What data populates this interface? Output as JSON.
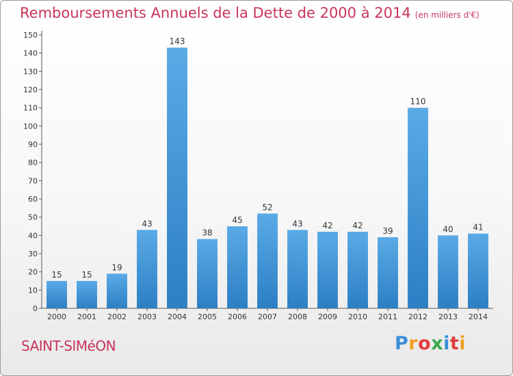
{
  "header": {
    "title": "Remboursements Annuels de la Dette de 2000 à 2014",
    "unit": "(en milliers d'€)"
  },
  "footer": {
    "city": "SAINT-SIMéON",
    "logo": [
      "P",
      "r",
      "o",
      "x",
      "i",
      "t",
      "i"
    ],
    "logo_colors": [
      "#3a8fd6",
      "#f0a020",
      "#e23b3b",
      "#3aa84a",
      "#3a8fd6",
      "#e23b3b",
      "#f0a020"
    ]
  },
  "colors": {
    "bar_light": "#5aaae6",
    "bar_dark": "#2c7fc4",
    "title": "#c8345a"
  },
  "chart_data": {
    "type": "bar",
    "title": "Remboursements Annuels de la Dette de 2000 à 2014",
    "xlabel": "",
    "ylabel": "",
    "categories": [
      "2000",
      "2001",
      "2002",
      "2003",
      "2004",
      "2005",
      "2006",
      "2007",
      "2008",
      "2009",
      "2010",
      "2011",
      "2012",
      "2013",
      "2014"
    ],
    "values": [
      15,
      15,
      19,
      43,
      143,
      38,
      45,
      52,
      43,
      42,
      42,
      39,
      110,
      40,
      41
    ],
    "ylim": [
      0,
      150
    ],
    "yticks": [
      0,
      10,
      20,
      30,
      40,
      50,
      60,
      70,
      80,
      90,
      100,
      110,
      120,
      130,
      140,
      150
    ],
    "grid": false,
    "legend": "none"
  }
}
